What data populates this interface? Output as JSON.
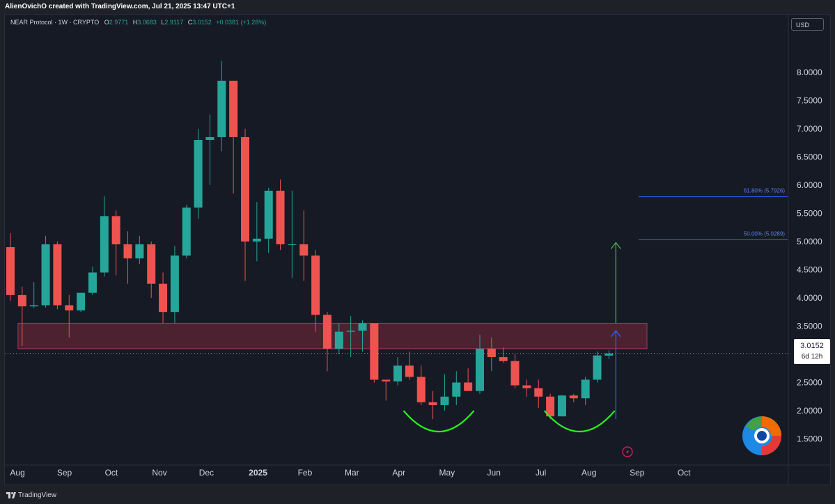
{
  "attribution": "AlienOvichO created with TradingView.com, Jul 21, 2025 13:47 UTC+1",
  "legend": {
    "title": "NEAR Protocol · 1W · CRYPTO",
    "o_label": "O",
    "o": "2.9771",
    "h_label": "H",
    "h": "3.0683",
    "l_label": "L",
    "l": "2.9117",
    "c_label": "C",
    "c": "3.0152",
    "change": "+0.0381 (+1.28%)"
  },
  "currency": "USD",
  "last_price": {
    "value": "3.0152",
    "countdown": "6d 12h"
  },
  "footer": "TradingView",
  "colors": {
    "up": "#26a69a",
    "down": "#ef5350",
    "zone": "#7a2a3c",
    "cup": "#29f01b",
    "target_arrow": "#4caf50",
    "stop_arrow": "#2962ff",
    "fib_line": "#2962ff"
  },
  "chart_data": {
    "type": "candlestick",
    "symbol": "NEAR Protocol",
    "interval": "1W",
    "y_axis": {
      "ticks": [
        1.5,
        2.0,
        2.5,
        3.0,
        3.5,
        4.0,
        4.5,
        5.0,
        5.5,
        6.0,
        6.5,
        7.0,
        7.5,
        8.0
      ],
      "tick_labels": [
        "1.5000",
        "2.0000",
        "2.5000",
        "3.0000",
        "3.5000",
        "4.0000",
        "4.5000",
        "5.0000",
        "5.5000",
        "6.0000",
        "6.5000",
        "7.0000",
        "7.5000",
        "8.0000"
      ],
      "range": [
        1.05,
        8.75
      ],
      "side": "right"
    },
    "x_axis": {
      "labels": [
        "Aug",
        "Sep",
        "Oct",
        "Nov",
        "Dec",
        "2025",
        "Feb",
        "Mar",
        "Apr",
        "May",
        "Jun",
        "Jul",
        "Aug",
        "Sep",
        "Oct"
      ],
      "label_candle_index": [
        0.6,
        4.6,
        8.6,
        12.7,
        16.7,
        21.1,
        25.1,
        29.1,
        33.1,
        37.2,
        41.2,
        45.2,
        49.3,
        53.4,
        57.4
      ]
    },
    "candles": [
      {
        "o": 4.9,
        "h": 5.15,
        "l": 3.95,
        "c": 4.05
      },
      {
        "o": 4.05,
        "h": 4.2,
        "l": 3.15,
        "c": 3.85
      },
      {
        "o": 3.85,
        "h": 4.28,
        "l": 3.82,
        "c": 3.87
      },
      {
        "o": 3.87,
        "h": 5.1,
        "l": 3.83,
        "c": 4.95
      },
      {
        "o": 4.95,
        "h": 5.0,
        "l": 3.8,
        "c": 3.87
      },
      {
        "o": 3.87,
        "h": 4.05,
        "l": 3.3,
        "c": 3.78
      },
      {
        "o": 3.78,
        "h": 4.08,
        "l": 3.75,
        "c": 4.09
      },
      {
        "o": 4.09,
        "h": 4.55,
        "l": 4.05,
        "c": 4.45
      },
      {
        "o": 4.45,
        "h": 5.8,
        "l": 4.38,
        "c": 5.45
      },
      {
        "o": 5.45,
        "h": 5.55,
        "l": 4.4,
        "c": 4.95
      },
      {
        "o": 4.95,
        "h": 5.18,
        "l": 4.25,
        "c": 4.7
      },
      {
        "o": 4.7,
        "h": 5.1,
        "l": 4.6,
        "c": 4.95
      },
      {
        "o": 4.95,
        "h": 5.0,
        "l": 4.0,
        "c": 4.25
      },
      {
        "o": 4.25,
        "h": 4.45,
        "l": 3.55,
        "c": 3.75
      },
      {
        "o": 3.75,
        "h": 4.92,
        "l": 3.55,
        "c": 4.75
      },
      {
        "o": 4.75,
        "h": 5.65,
        "l": 4.7,
        "c": 5.6
      },
      {
        "o": 5.6,
        "h": 7.0,
        "l": 5.4,
        "c": 6.8
      },
      {
        "o": 6.8,
        "h": 7.25,
        "l": 6.0,
        "c": 6.85
      },
      {
        "o": 6.85,
        "h": 8.2,
        "l": 6.6,
        "c": 7.85
      },
      {
        "o": 7.85,
        "h": 7.85,
        "l": 5.85,
        "c": 6.85
      },
      {
        "o": 6.85,
        "h": 7.0,
        "l": 4.3,
        "c": 5.0
      },
      {
        "o": 5.0,
        "h": 5.7,
        "l": 4.65,
        "c": 5.05
      },
      {
        "o": 5.05,
        "h": 5.95,
        "l": 4.8,
        "c": 5.9
      },
      {
        "o": 5.9,
        "h": 6.1,
        "l": 4.85,
        "c": 4.95
      },
      {
        "o": 4.95,
        "h": 5.9,
        "l": 4.35,
        "c": 4.95
      },
      {
        "o": 4.95,
        "h": 5.55,
        "l": 4.3,
        "c": 4.75
      },
      {
        "o": 4.75,
        "h": 4.85,
        "l": 3.4,
        "c": 3.7
      },
      {
        "o": 3.7,
        "h": 3.75,
        "l": 2.7,
        "c": 3.1
      },
      {
        "o": 3.1,
        "h": 3.55,
        "l": 3.0,
        "c": 3.4
      },
      {
        "o": 3.4,
        "h": 3.68,
        "l": 2.95,
        "c": 3.42
      },
      {
        "o": 3.42,
        "h": 3.6,
        "l": 3.05,
        "c": 3.55
      },
      {
        "o": 3.55,
        "h": 3.55,
        "l": 2.5,
        "c": 2.55
      },
      {
        "o": 2.55,
        "h": 2.55,
        "l": 2.18,
        "c": 2.52
      },
      {
        "o": 2.52,
        "h": 2.95,
        "l": 2.45,
        "c": 2.8
      },
      {
        "o": 2.8,
        "h": 3.05,
        "l": 2.55,
        "c": 2.6
      },
      {
        "o": 2.6,
        "h": 2.8,
        "l": 2.1,
        "c": 2.15
      },
      {
        "o": 2.15,
        "h": 2.35,
        "l": 1.85,
        "c": 2.1
      },
      {
        "o": 2.1,
        "h": 2.65,
        "l": 2.0,
        "c": 2.25
      },
      {
        "o": 2.25,
        "h": 2.7,
        "l": 2.1,
        "c": 2.5
      },
      {
        "o": 2.5,
        "h": 2.75,
        "l": 2.4,
        "c": 2.35
      },
      {
        "o": 2.35,
        "h": 3.35,
        "l": 2.3,
        "c": 3.1
      },
      {
        "o": 3.1,
        "h": 3.3,
        "l": 2.7,
        "c": 2.95
      },
      {
        "o": 2.95,
        "h": 3.12,
        "l": 2.85,
        "c": 2.88
      },
      {
        "o": 2.88,
        "h": 3.0,
        "l": 2.4,
        "c": 2.45
      },
      {
        "o": 2.45,
        "h": 2.55,
        "l": 2.25,
        "c": 2.4
      },
      {
        "o": 2.4,
        "h": 2.55,
        "l": 2.05,
        "c": 2.25
      },
      {
        "o": 2.25,
        "h": 2.3,
        "l": 1.85,
        "c": 1.9
      },
      {
        "o": 1.9,
        "h": 2.28,
        "l": 1.9,
        "c": 2.27
      },
      {
        "o": 2.27,
        "h": 2.3,
        "l": 2.15,
        "c": 2.22
      },
      {
        "o": 2.22,
        "h": 2.6,
        "l": 2.1,
        "c": 2.55
      },
      {
        "o": 2.55,
        "h": 3.05,
        "l": 2.5,
        "c": 2.98
      },
      {
        "o": 2.9771,
        "h": 3.0683,
        "l": 2.9117,
        "c": 3.0152
      }
    ],
    "resistance_zone": {
      "from_candle": 1,
      "to_candle": 54.6,
      "low": 3.1,
      "high": 3.55
    },
    "fib_levels": [
      {
        "label": "61.80% (5.7926)",
        "value": 5.7926
      },
      {
        "label": "50.00% (5.0289)",
        "value": 5.0289
      }
    ],
    "target_arrow": {
      "from": 3.55,
      "to": 4.98
    },
    "stop_arrow": {
      "from": 1.85,
      "to": 3.42
    },
    "cup_patterns": [
      {
        "from_candle": 33.5,
        "to_candle": 39.5,
        "top": 2.0,
        "bottom": 1.63
      },
      {
        "from_candle": 45.5,
        "to_candle": 51.5,
        "top": 2.0,
        "bottom": 1.63
      }
    ]
  }
}
